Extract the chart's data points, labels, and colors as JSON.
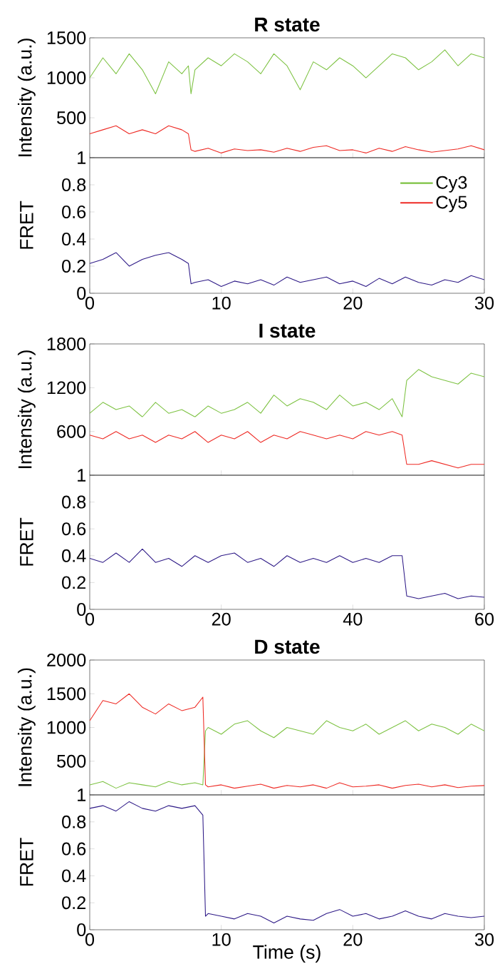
{
  "chart_data": [
    {
      "type": "line",
      "title": "R state",
      "ylabel": "Intensity (a.u.)",
      "x": [
        0,
        1,
        2,
        3,
        4,
        5,
        6,
        7,
        7.5,
        7.7,
        8,
        9,
        10,
        11,
        12,
        13,
        14,
        15,
        16,
        17,
        18,
        19,
        20,
        21,
        22,
        23,
        24,
        25,
        26,
        27,
        28,
        29,
        30
      ],
      "xlim": [
        0,
        30
      ],
      "xticks": [
        0,
        10,
        20,
        30
      ],
      "ylim": [
        1,
        1500
      ],
      "yticks": [
        1,
        500,
        1000,
        1500
      ],
      "tick_labels": "y",
      "legend": "bottom right",
      "series": [
        {
          "name": "Cy3",
          "color": "#7dc242",
          "values": [
            1000,
            1250,
            1050,
            1300,
            1100,
            800,
            1200,
            1050,
            1150,
            800,
            1100,
            1250,
            1150,
            1300,
            1200,
            1050,
            1300,
            1150,
            850,
            1200,
            1100,
            1250,
            1150,
            1000,
            1150,
            1300,
            1250,
            1100,
            1200,
            1350,
            1150,
            1300,
            1250
          ]
        },
        {
          "name": "Cy5",
          "color": "#ee2a24",
          "values": [
            300,
            350,
            400,
            300,
            350,
            300,
            400,
            350,
            300,
            100,
            80,
            120,
            60,
            110,
            90,
            100,
            70,
            120,
            80,
            130,
            150,
            90,
            100,
            60,
            120,
            80,
            140,
            100,
            70,
            90,
            110,
            150,
            100
          ]
        }
      ]
    },
    {
      "type": "line",
      "ylabel": "FRET",
      "x": [
        0,
        1,
        2,
        3,
        4,
        5,
        6,
        7,
        7.5,
        7.7,
        8,
        9,
        10,
        11,
        12,
        13,
        14,
        15,
        16,
        17,
        18,
        19,
        20,
        21,
        22,
        23,
        24,
        25,
        26,
        27,
        28,
        29,
        30
      ],
      "xlim": [
        0,
        30
      ],
      "xticks": [
        0,
        10,
        20,
        30
      ],
      "ylim": [
        0,
        1
      ],
      "yticks": [
        0,
        0.2,
        0.4,
        0.6,
        0.8
      ],
      "series": [
        {
          "color": "#2e1a87",
          "values": [
            0.22,
            0.25,
            0.3,
            0.2,
            0.25,
            0.28,
            0.3,
            0.25,
            0.22,
            0.07,
            0.08,
            0.1,
            0.05,
            0.09,
            0.07,
            0.1,
            0.06,
            0.12,
            0.08,
            0.1,
            0.12,
            0.07,
            0.09,
            0.05,
            0.11,
            0.07,
            0.12,
            0.08,
            0.06,
            0.1,
            0.08,
            0.13,
            0.1
          ]
        }
      ]
    },
    {
      "type": "line",
      "title": "I state",
      "ylabel": "Intensity (a.u.)",
      "x": [
        0,
        2,
        4,
        6,
        8,
        10,
        12,
        14,
        16,
        18,
        20,
        22,
        24,
        26,
        28,
        30,
        32,
        34,
        36,
        38,
        40,
        42,
        44,
        46,
        47.5,
        48.2,
        50,
        52,
        54,
        56,
        58,
        60
      ],
      "xlim": [
        0,
        60
      ],
      "xticks": [
        0,
        20,
        40,
        60
      ],
      "ylim": [
        1,
        1800
      ],
      "yticks": [
        1,
        600,
        1200,
        1800
      ],
      "tick_labels": "y",
      "series": [
        {
          "color": "#7dc242",
          "values": [
            850,
            1000,
            900,
            950,
            800,
            1000,
            850,
            900,
            800,
            950,
            850,
            900,
            1000,
            850,
            1100,
            950,
            1050,
            1000,
            900,
            1100,
            950,
            1000,
            900,
            1050,
            800,
            1300,
            1450,
            1350,
            1300,
            1250,
            1400,
            1350
          ]
        },
        {
          "color": "#ee2a24",
          "values": [
            550,
            500,
            600,
            500,
            550,
            450,
            550,
            500,
            600,
            450,
            550,
            500,
            600,
            450,
            550,
            500,
            600,
            550,
            500,
            550,
            500,
            600,
            550,
            600,
            550,
            150,
            150,
            200,
            150,
            100,
            150,
            150
          ]
        }
      ]
    },
    {
      "type": "line",
      "ylabel": "FRET",
      "x": [
        0,
        2,
        4,
        6,
        8,
        10,
        12,
        14,
        16,
        18,
        20,
        22,
        24,
        26,
        28,
        30,
        32,
        34,
        36,
        38,
        40,
        42,
        44,
        46,
        47.5,
        48.2,
        50,
        52,
        54,
        56,
        58,
        60
      ],
      "xlim": [
        0,
        60
      ],
      "xticks": [
        0,
        20,
        40,
        60
      ],
      "ylim": [
        0,
        1
      ],
      "yticks": [
        0,
        0.2,
        0.4,
        0.6,
        0.8
      ],
      "series": [
        {
          "color": "#2e1a87",
          "values": [
            0.38,
            0.35,
            0.42,
            0.35,
            0.45,
            0.35,
            0.38,
            0.32,
            0.4,
            0.35,
            0.4,
            0.42,
            0.35,
            0.38,
            0.32,
            0.4,
            0.35,
            0.38,
            0.35,
            0.4,
            0.35,
            0.38,
            0.35,
            0.4,
            0.4,
            0.1,
            0.08,
            0.1,
            0.12,
            0.08,
            0.1,
            0.09
          ]
        }
      ]
    },
    {
      "type": "line",
      "title": "D state",
      "ylabel": "Intensity (a.u.)",
      "x": [
        0,
        1,
        2,
        3,
        4,
        5,
        6,
        7,
        8,
        8.6,
        8.8,
        9,
        10,
        11,
        12,
        13,
        14,
        15,
        16,
        17,
        18,
        19,
        20,
        21,
        22,
        23,
        24,
        25,
        26,
        27,
        28,
        29,
        30
      ],
      "xlim": [
        0,
        30
      ],
      "xticks": [
        0,
        10,
        20,
        30
      ],
      "ylim": [
        1,
        2000
      ],
      "yticks": [
        1,
        500,
        1000,
        1500,
        2000
      ],
      "tick_labels": "y",
      "series": [
        {
          "color": "#7dc242",
          "values": [
            150,
            200,
            100,
            180,
            150,
            120,
            200,
            150,
            180,
            150,
            950,
            1000,
            900,
            1050,
            1100,
            950,
            850,
            1000,
            950,
            900,
            1100,
            1000,
            950,
            1050,
            900,
            1000,
            1100,
            950,
            1050,
            1000,
            900,
            1050,
            950
          ]
        },
        {
          "color": "#ee2a24",
          "values": [
            1100,
            1400,
            1350,
            1500,
            1300,
            1200,
            1350,
            1250,
            1300,
            1450,
            150,
            120,
            150,
            100,
            130,
            160,
            100,
            140,
            120,
            150,
            100,
            180,
            120,
            130,
            150,
            100,
            140,
            160,
            120,
            150,
            110,
            130,
            140
          ]
        }
      ]
    },
    {
      "type": "line",
      "ylabel": "FRET",
      "xlabel": "Time (s)",
      "x": [
        0,
        1,
        2,
        3,
        4,
        5,
        6,
        7,
        8,
        8.6,
        8.8,
        9,
        10,
        11,
        12,
        13,
        14,
        15,
        16,
        17,
        18,
        19,
        20,
        21,
        22,
        23,
        24,
        25,
        26,
        27,
        28,
        29,
        30
      ],
      "xlim": [
        0,
        30
      ],
      "xticks": [
        0,
        10,
        20,
        30
      ],
      "ylim": [
        0,
        1
      ],
      "yticks": [
        0,
        0.2,
        0.4,
        0.6,
        0.8
      ],
      "series": [
        {
          "color": "#2e1a87",
          "values": [
            0.9,
            0.92,
            0.88,
            0.95,
            0.9,
            0.88,
            0.92,
            0.9,
            0.92,
            0.85,
            0.1,
            0.12,
            0.1,
            0.08,
            0.12,
            0.1,
            0.05,
            0.1,
            0.08,
            0.07,
            0.12,
            0.15,
            0.1,
            0.12,
            0.08,
            0.1,
            0.14,
            0.1,
            0.08,
            0.12,
            0.1,
            0.09,
            0.1
          ]
        }
      ]
    }
  ]
}
